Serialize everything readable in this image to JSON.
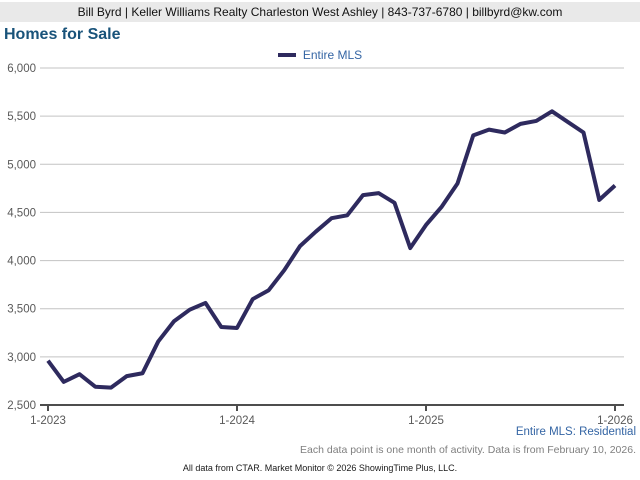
{
  "header": {
    "contact_line": "Bill Byrd | Keller Williams Realty Charleston West Ashley | 843-737-6780 | billbyrd@kw.com"
  },
  "title": "Homes for Sale",
  "legend": {
    "label": "Entire MLS"
  },
  "chart_data": {
    "type": "line",
    "title": "Homes for Sale",
    "x": [
      "1-2023",
      "2-2023",
      "3-2023",
      "4-2023",
      "5-2023",
      "6-2023",
      "7-2023",
      "8-2023",
      "9-2023",
      "10-2023",
      "11-2023",
      "12-2023",
      "1-2024",
      "2-2024",
      "3-2024",
      "4-2024",
      "5-2024",
      "6-2024",
      "7-2024",
      "8-2024",
      "9-2024",
      "10-2024",
      "11-2024",
      "12-2024",
      "1-2025",
      "2-2025",
      "3-2025",
      "4-2025",
      "5-2025",
      "6-2025",
      "7-2025",
      "8-2025",
      "9-2025",
      "10-2025",
      "11-2025",
      "12-2025",
      "1-2026"
    ],
    "series": [
      {
        "name": "Entire MLS",
        "color": "#2e2a5e",
        "values": [
          2960,
          2740,
          2820,
          2690,
          2680,
          2800,
          2830,
          3160,
          3370,
          3490,
          3560,
          3310,
          3300,
          3600,
          3690,
          3900,
          4150,
          4300,
          4440,
          4470,
          4680,
          4700,
          4600,
          4130,
          4370,
          4560,
          4800,
          5300,
          5360,
          5330,
          5420,
          5450,
          5550,
          5440,
          5330,
          4630,
          4780
        ]
      }
    ],
    "x_tick_labels": [
      "1-2023",
      "1-2024",
      "1-2025",
      "1-2026"
    ],
    "x_tick_indices": [
      0,
      12,
      24,
      36
    ],
    "y_ticks": [
      2500,
      3000,
      3500,
      4000,
      4500,
      5000,
      5500,
      6000
    ],
    "ylim": [
      2500,
      6000
    ],
    "grid": "horizontal",
    "legend_position": "top-center",
    "xlabel": "",
    "ylabel": ""
  },
  "footer": {
    "series_note": "Entire MLS: Residential",
    "data_note": "Each data point is one month of activity. Data is from February 10, 2026.",
    "attribution": "All data from CTAR. Market Monitor © 2026 ShowingTime Plus, LLC."
  },
  "colors": {
    "header_bg": "#e9e9e9",
    "title_text": "#19537a",
    "line": "#2e2a5e",
    "legend_text": "#3465a4",
    "gridline": "#c3c3c3",
    "axis": "#4d4d4d",
    "tick_label": "#595959",
    "series_note_text": "#3465a4",
    "data_note_text": "#7f7f7f"
  }
}
